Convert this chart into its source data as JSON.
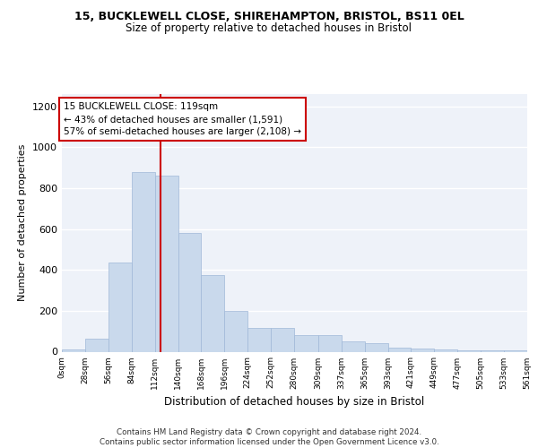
{
  "title1": "15, BUCKLEWELL CLOSE, SHIREHAMPTON, BRISTOL, BS11 0EL",
  "title2": "Size of property relative to detached houses in Bristol",
  "xlabel": "Distribution of detached houses by size in Bristol",
  "ylabel": "Number of detached properties",
  "bar_color": "#c9d9ec",
  "bar_edge_color": "#a0b8d8",
  "background_color": "#eef2f9",
  "vline_x": 119,
  "vline_color": "#cc0000",
  "annotation_text": "15 BUCKLEWELL CLOSE: 119sqm\n← 43% of detached houses are smaller (1,591)\n57% of semi-detached houses are larger (2,108) →",
  "annotation_box_color": "#ffffff",
  "annotation_box_edge": "#cc0000",
  "footer": "Contains HM Land Registry data © Crown copyright and database right 2024.\nContains public sector information licensed under the Open Government Licence v3.0.",
  "bin_edges": [
    0,
    28,
    56,
    84,
    112,
    140,
    168,
    196,
    224,
    252,
    280,
    309,
    337,
    365,
    393,
    421,
    449,
    477,
    505,
    533,
    561
  ],
  "bar_heights": [
    12,
    65,
    437,
    880,
    860,
    580,
    376,
    200,
    115,
    115,
    82,
    82,
    50,
    40,
    20,
    15,
    12,
    8,
    5,
    5
  ],
  "ylim": [
    0,
    1260
  ],
  "xlim": [
    0,
    561
  ],
  "yticks": [
    0,
    200,
    400,
    600,
    800,
    1000,
    1200
  ]
}
